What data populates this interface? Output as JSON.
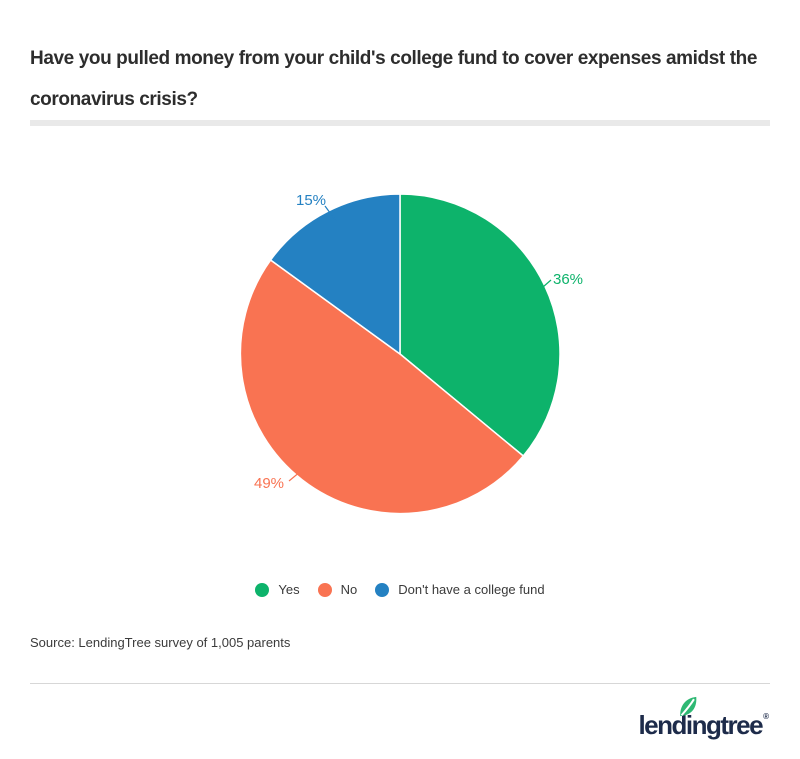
{
  "header": {
    "title_lines": [
      "Have you pulled money from your child's college fund to cover expenses amidst the",
      "coronavirus crisis?"
    ]
  },
  "chart_data": {
    "type": "pie",
    "title": "Have you pulled money from your child's college fund to cover expenses amidst the coronavirus crisis?",
    "labels": [
      "Yes",
      "No",
      "Don't have a college fund"
    ],
    "values": [
      36,
      49,
      15
    ],
    "value_labels": [
      "36%",
      "49%",
      "15%"
    ],
    "colors": [
      "#0db36b",
      "#f97352",
      "#2481c2"
    ],
    "start_angle_deg": -90,
    "direction": "clockwise",
    "legend_position": "bottom",
    "slice_separator_color": "#ffffff"
  },
  "source": {
    "text": "Source: LendingTree survey of 1,005 parents"
  },
  "footer": {
    "brand": "lendingtree",
    "registered_mark": "®",
    "brand_color": "#1d2b4a",
    "leaf_color": "#2eb873"
  }
}
